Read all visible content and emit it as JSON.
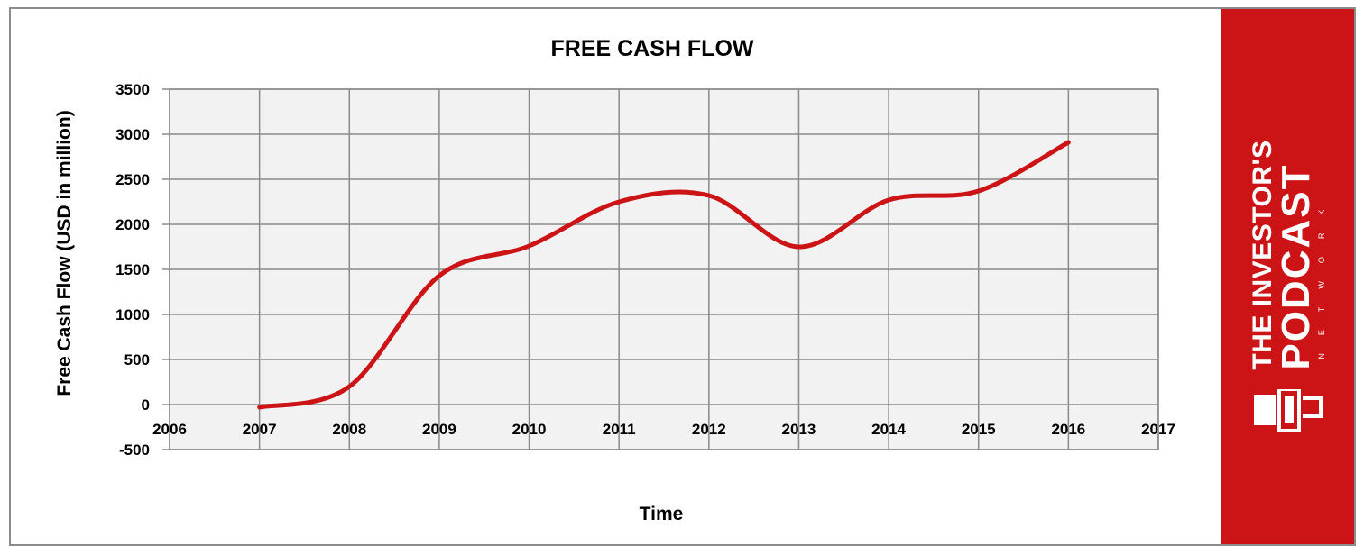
{
  "brand": {
    "line1": "THE INVESTOR'S",
    "line2": "PODCAST",
    "line3": "NETWORK",
    "color": "#cc1417"
  },
  "chart_data": {
    "type": "line",
    "title": "FREE CASH FLOW",
    "xlabel": "Time",
    "ylabel": "Free Cash Flow (USD in million)",
    "xlim": [
      2006,
      2017
    ],
    "ylim": [
      -500,
      3500
    ],
    "xticks": [
      "2006",
      "2007",
      "2008",
      "2009",
      "2010",
      "2011",
      "2012",
      "2013",
      "2014",
      "2015",
      "2016",
      "2017"
    ],
    "yticks": [
      "3500",
      "3000",
      "2500",
      "2000",
      "1500",
      "1000",
      "500",
      "0",
      "-500"
    ],
    "grid": true,
    "legend": "none",
    "smooth": true,
    "series": [
      {
        "color": "#cc1417",
        "x": [
          2007,
          2008,
          2009,
          2010,
          2011,
          2012,
          2013,
          2014,
          2015,
          2016
        ],
        "values": [
          -30,
          200,
          1430,
          1760,
          2250,
          2320,
          1750,
          2270,
          2370,
          2910
        ]
      }
    ]
  }
}
